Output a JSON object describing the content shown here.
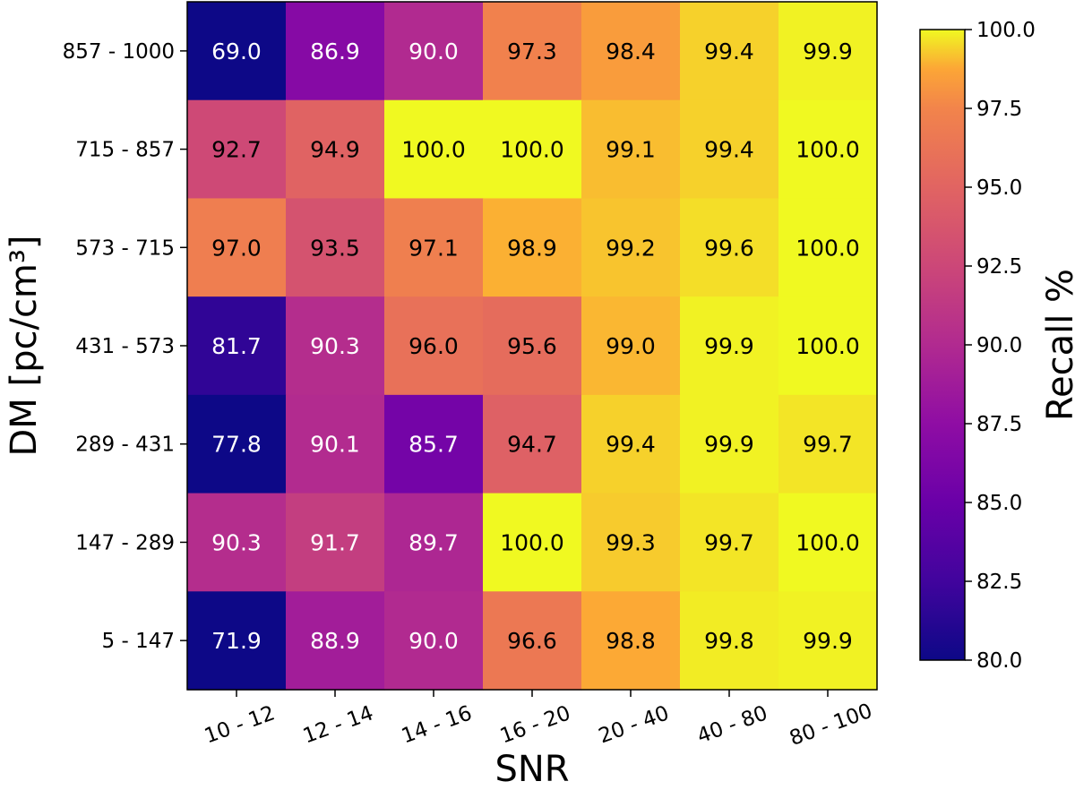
{
  "chart_data": {
    "type": "heatmap",
    "xlabel": "SNR",
    "ylabel": "DM [pc/cm³]",
    "x_categories": [
      "10 - 12",
      "12 - 14",
      "14 - 16",
      "16 - 20",
      "20 - 40",
      "40 - 80",
      "80 - 100"
    ],
    "y_categories": [
      "857 - 1000",
      "715 - 857",
      "573 - 715",
      "431 - 573",
      "289 - 431",
      "147 - 289",
      "5 - 147"
    ],
    "values": [
      [
        69.0,
        86.9,
        90.0,
        97.3,
        98.4,
        99.4,
        99.9
      ],
      [
        92.7,
        94.9,
        100.0,
        100.0,
        99.1,
        99.4,
        100.0
      ],
      [
        97.0,
        93.5,
        97.1,
        98.9,
        99.2,
        99.6,
        100.0
      ],
      [
        81.7,
        90.3,
        96.0,
        95.6,
        99.0,
        99.9,
        100.0
      ],
      [
        77.8,
        90.1,
        85.7,
        94.7,
        99.4,
        99.9,
        99.7
      ],
      [
        90.3,
        91.7,
        89.7,
        100.0,
        99.3,
        99.7,
        100.0
      ],
      [
        71.9,
        88.9,
        90.0,
        96.6,
        98.8,
        99.8,
        99.9
      ]
    ],
    "colorbar": {
      "label": "Recall %",
      "range": [
        80.0,
        100.0
      ],
      "ticks": [
        "80.0",
        "82.5",
        "85.0",
        "87.5",
        "90.0",
        "92.5",
        "95.0",
        "97.5",
        "100.0"
      ],
      "colormap": "plasma"
    }
  }
}
